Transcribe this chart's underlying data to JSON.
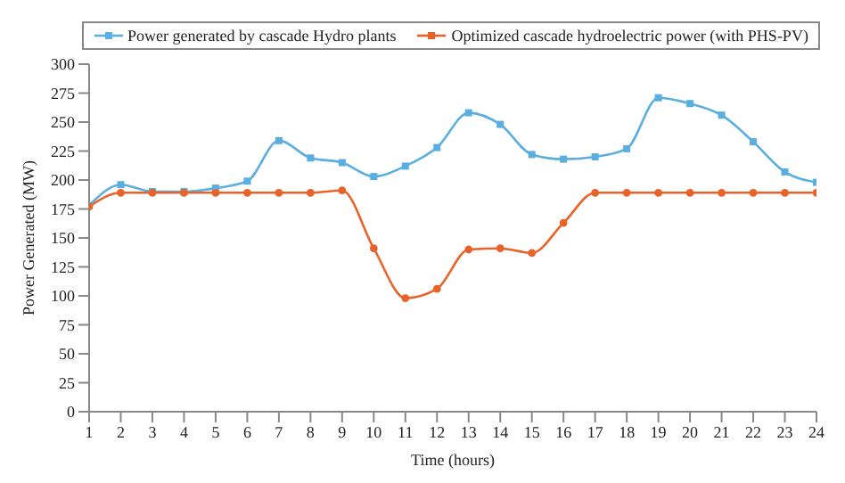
{
  "chart_data": {
    "type": "line",
    "xlabel": "Time (hours)",
    "ylabel": "Power Generated (MW)",
    "x": [
      1,
      2,
      3,
      4,
      5,
      6,
      7,
      8,
      9,
      10,
      11,
      12,
      13,
      14,
      15,
      16,
      17,
      18,
      19,
      20,
      21,
      22,
      23,
      24
    ],
    "xlim": [
      1,
      24
    ],
    "xticks": [
      1,
      2,
      3,
      4,
      5,
      6,
      7,
      8,
      9,
      10,
      11,
      12,
      13,
      14,
      15,
      16,
      17,
      18,
      19,
      20,
      21,
      22,
      23,
      24
    ],
    "ylim": [
      0,
      300
    ],
    "yticks": [
      0,
      25,
      50,
      75,
      100,
      125,
      150,
      175,
      200,
      225,
      250,
      275,
      300
    ],
    "series": [
      {
        "name": "Power generated by cascade Hydro plants",
        "color": "#5aaee0",
        "marker": "square",
        "values": [
          178,
          196,
          190,
          190,
          193,
          199,
          234,
          219,
          215,
          203,
          212,
          228,
          258,
          248,
          222,
          218,
          220,
          227,
          271,
          266,
          256,
          233,
          207,
          198
        ]
      },
      {
        "name": "Optimized cascade hydroelectric power (with PHS-PV)",
        "color": "#e8632a",
        "marker": "circle",
        "values": [
          177,
          189,
          189,
          189,
          189,
          189,
          189,
          189,
          191,
          141,
          98,
          106,
          140,
          141,
          137,
          163,
          189,
          189,
          189,
          189,
          189,
          189,
          189,
          189
        ]
      }
    ],
    "legend": "top",
    "line_style": "solid"
  }
}
